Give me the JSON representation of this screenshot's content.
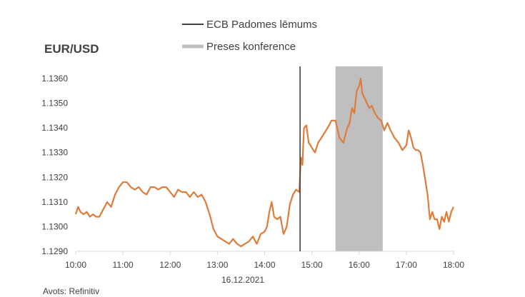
{
  "chart_data": {
    "type": "line",
    "title": "EUR/USD",
    "date_label": "16.12.2021",
    "source": "Avots: Refinitiv",
    "ylim": [
      1.129,
      1.1365
    ],
    "yticks": [
      "1.1290",
      "1.1300",
      "1.1310",
      "1.1320",
      "1.1330",
      "1.1340",
      "1.1350",
      "1.1360"
    ],
    "xlim": [
      "10:00",
      "18:00"
    ],
    "xticks": [
      "10:00",
      "11:00",
      "12:00",
      "13:00",
      "14:00",
      "15:00",
      "16:00",
      "17:00",
      "18:00"
    ],
    "legend": [
      {
        "label": "ECB Padomes lēmums",
        "color": "#404040",
        "kind": "line"
      },
      {
        "label": "Preses konference",
        "color": "#bfbfbf",
        "kind": "band"
      }
    ],
    "ecb_decision_time": "14:45",
    "press_conference": [
      "15:30",
      "16:30"
    ],
    "grid": false,
    "series": [
      {
        "color": "#e07b39",
        "points": [
          [
            "10:00",
            1.1305
          ],
          [
            "10:03",
            1.1308
          ],
          [
            "10:06",
            1.1306
          ],
          [
            "10:10",
            1.1305
          ],
          [
            "10:14",
            1.1306
          ],
          [
            "10:18",
            1.1304
          ],
          [
            "10:22",
            1.1305
          ],
          [
            "10:26",
            1.1304
          ],
          [
            "10:30",
            1.1304
          ],
          [
            "10:35",
            1.1307
          ],
          [
            "10:40",
            1.131
          ],
          [
            "10:45",
            1.1308
          ],
          [
            "10:50",
            1.1313
          ],
          [
            "10:55",
            1.1316
          ],
          [
            "11:00",
            1.1318
          ],
          [
            "11:05",
            1.1318
          ],
          [
            "11:10",
            1.1316
          ],
          [
            "11:15",
            1.1315
          ],
          [
            "11:20",
            1.1316
          ],
          [
            "11:25",
            1.1314
          ],
          [
            "11:30",
            1.1313
          ],
          [
            "11:35",
            1.1316
          ],
          [
            "11:40",
            1.1316
          ],
          [
            "11:45",
            1.1315
          ],
          [
            "11:50",
            1.1316
          ],
          [
            "11:55",
            1.1316
          ],
          [
            "12:00",
            1.1314
          ],
          [
            "12:05",
            1.1312
          ],
          [
            "12:10",
            1.1315
          ],
          [
            "12:15",
            1.1314
          ],
          [
            "12:20",
            1.1314
          ],
          [
            "12:25",
            1.1312
          ],
          [
            "12:30",
            1.1314
          ],
          [
            "12:35",
            1.1312
          ],
          [
            "12:40",
            1.1313
          ],
          [
            "12:45",
            1.131
          ],
          [
            "12:50",
            1.1305
          ],
          [
            "12:55",
            1.1299
          ],
          [
            "13:00",
            1.1296
          ],
          [
            "13:05",
            1.1295
          ],
          [
            "13:10",
            1.1294
          ],
          [
            "13:15",
            1.1293
          ],
          [
            "13:20",
            1.1295
          ],
          [
            "13:25",
            1.1293
          ],
          [
            "13:30",
            1.1292
          ],
          [
            "13:35",
            1.1293
          ],
          [
            "13:40",
            1.1294
          ],
          [
            "13:45",
            1.1296
          ],
          [
            "13:50",
            1.1293
          ],
          [
            "13:55",
            1.1297
          ],
          [
            "14:00",
            1.1298
          ],
          [
            "14:03",
            1.13
          ],
          [
            "14:06",
            1.1306
          ],
          [
            "14:09",
            1.131
          ],
          [
            "14:12",
            1.1304
          ],
          [
            "14:16",
            1.1303
          ],
          [
            "14:20",
            1.1304
          ],
          [
            "14:24",
            1.1297
          ],
          [
            "14:28",
            1.13
          ],
          [
            "14:32",
            1.1309
          ],
          [
            "14:36",
            1.1313
          ],
          [
            "14:40",
            1.1315
          ],
          [
            "14:44",
            1.1314
          ],
          [
            "14:46",
            1.1328
          ],
          [
            "14:48",
            1.1325
          ],
          [
            "14:50",
            1.134
          ],
          [
            "14:53",
            1.1341
          ],
          [
            "14:56",
            1.1334
          ],
          [
            "15:00",
            1.1332
          ],
          [
            "15:04",
            1.133
          ],
          [
            "15:08",
            1.1334
          ],
          [
            "15:12",
            1.1336
          ],
          [
            "15:16",
            1.1338
          ],
          [
            "15:20",
            1.134
          ],
          [
            "15:25",
            1.1343
          ],
          [
            "15:30",
            1.1343
          ],
          [
            "15:35",
            1.1336
          ],
          [
            "15:40",
            1.1334
          ],
          [
            "15:45",
            1.134
          ],
          [
            "15:48",
            1.1342
          ],
          [
            "15:51",
            1.1348
          ],
          [
            "15:54",
            1.1346
          ],
          [
            "15:57",
            1.1355
          ],
          [
            "16:00",
            1.1357
          ],
          [
            "16:02",
            1.136
          ],
          [
            "16:04",
            1.1354
          ],
          [
            "16:07",
            1.1352
          ],
          [
            "16:10",
            1.135
          ],
          [
            "16:13",
            1.1348
          ],
          [
            "16:16",
            1.1349
          ],
          [
            "16:20",
            1.1346
          ],
          [
            "16:24",
            1.1344
          ],
          [
            "16:28",
            1.1343
          ],
          [
            "16:32",
            1.1339
          ],
          [
            "16:36",
            1.1342
          ],
          [
            "16:40",
            1.1339
          ],
          [
            "16:45",
            1.1336
          ],
          [
            "16:50",
            1.1334
          ],
          [
            "16:55",
            1.1331
          ],
          [
            "17:00",
            1.1333
          ],
          [
            "17:03",
            1.1339
          ],
          [
            "17:06",
            1.1336
          ],
          [
            "17:09",
            1.1332
          ],
          [
            "17:12",
            1.1331
          ],
          [
            "17:15",
            1.1331
          ],
          [
            "17:18",
            1.133
          ],
          [
            "17:21",
            1.1325
          ],
          [
            "17:24",
            1.1319
          ],
          [
            "17:27",
            1.1313
          ],
          [
            "17:30",
            1.1303
          ],
          [
            "17:33",
            1.1306
          ],
          [
            "17:36",
            1.1303
          ],
          [
            "17:39",
            1.1303
          ],
          [
            "17:42",
            1.1299
          ],
          [
            "17:45",
            1.1304
          ],
          [
            "17:48",
            1.1302
          ],
          [
            "17:51",
            1.1306
          ],
          [
            "17:54",
            1.1302
          ],
          [
            "17:57",
            1.1306
          ],
          [
            "18:00",
            1.1308
          ]
        ]
      }
    ]
  }
}
